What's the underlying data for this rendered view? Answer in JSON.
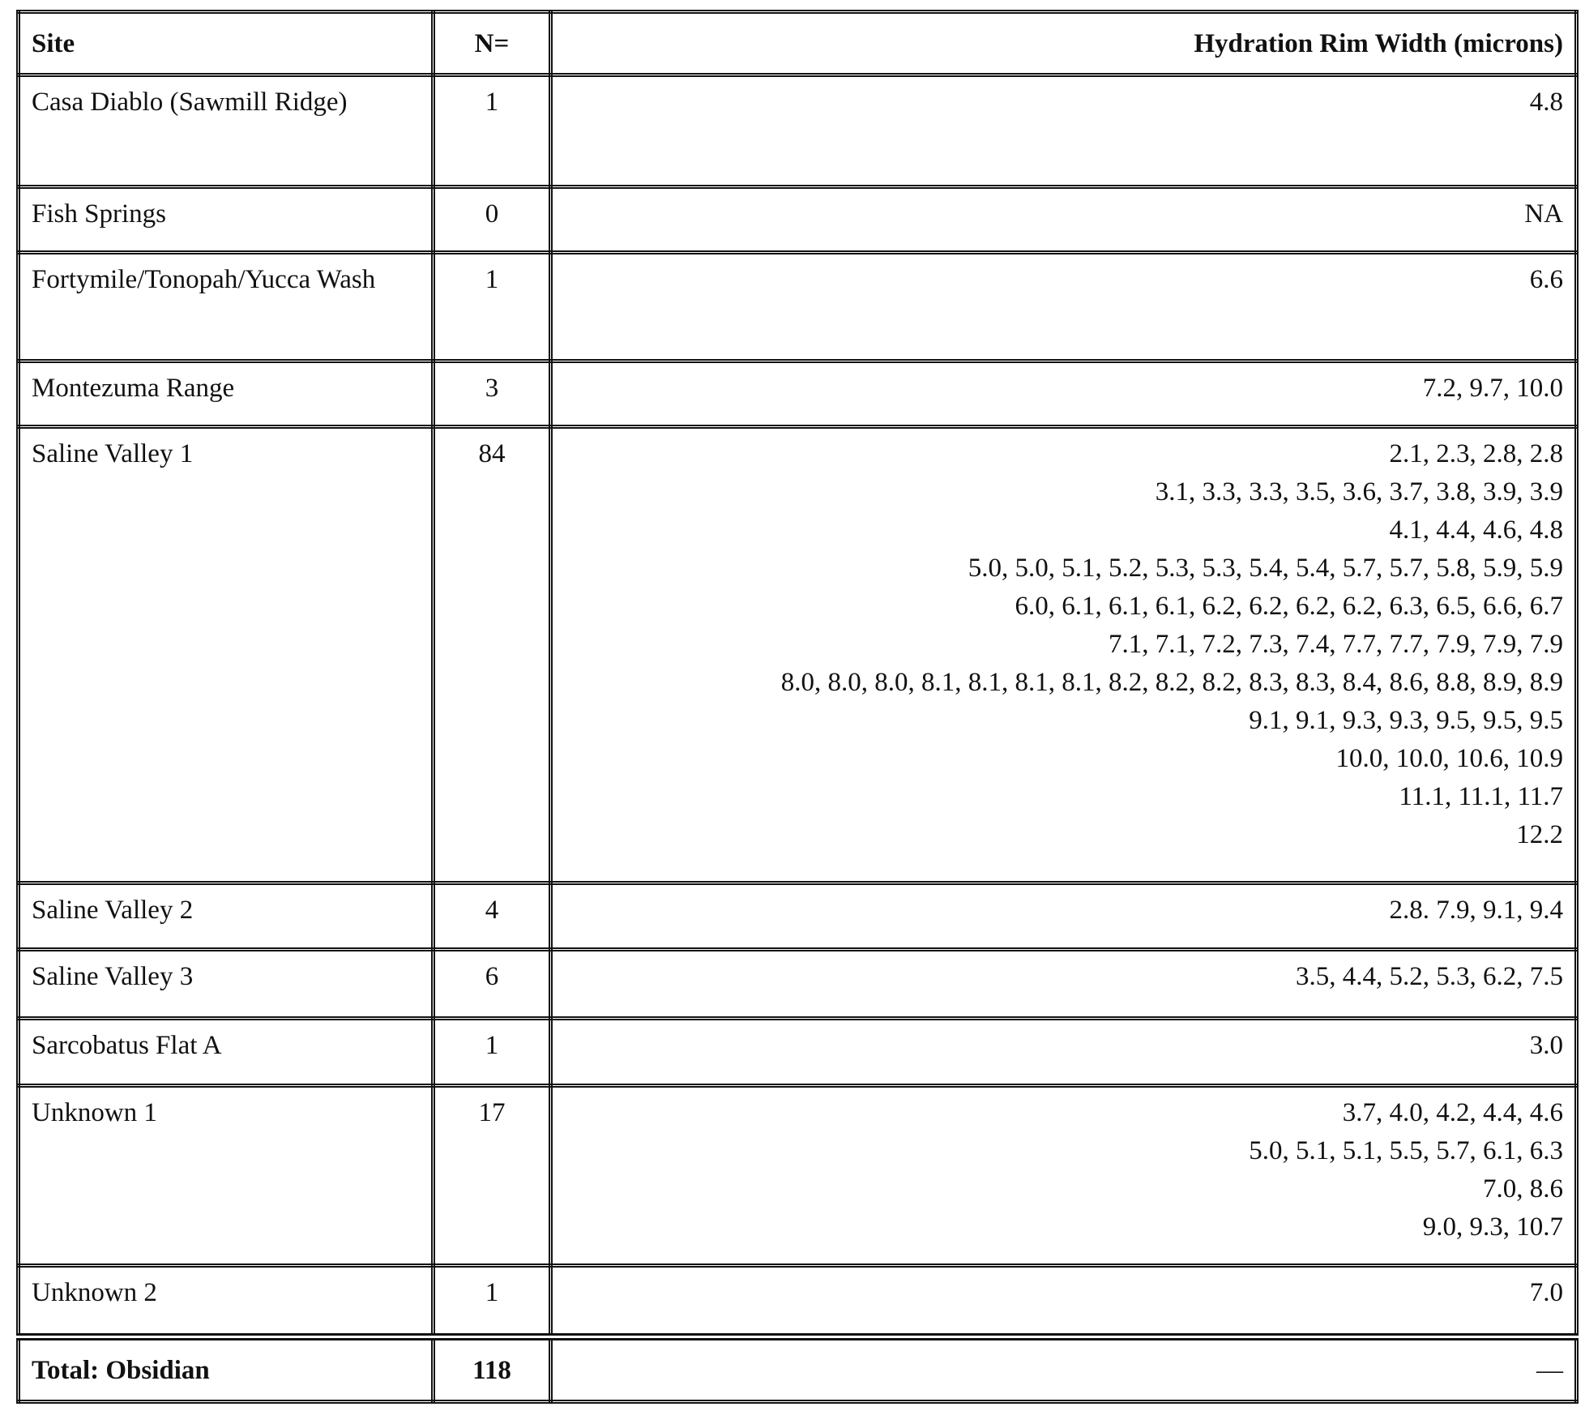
{
  "headers": {
    "site": "Site",
    "n": "N=",
    "rim": "Hydration Rim Width (microns)"
  },
  "rows": [
    {
      "site": "Casa Diablo (Sawmill Ridge)",
      "n": "1",
      "rim": [
        "4.8"
      ]
    },
    {
      "site": "Fish Springs",
      "n": "0",
      "rim": [
        "NA"
      ]
    },
    {
      "site": "Fortymile/Tonopah/Yucca Wash",
      "n": "1",
      "rim": [
        "6.6"
      ]
    },
    {
      "site": "Montezuma Range",
      "n": "3",
      "rim": [
        "7.2, 9.7, 10.0"
      ]
    },
    {
      "site": "Saline Valley 1",
      "n": "84",
      "rim": [
        "2.1, 2.3, 2.8, 2.8",
        "3.1, 3.3, 3.3, 3.5, 3.6, 3.7, 3.8, 3.9, 3.9",
        "4.1, 4.4, 4.6, 4.8",
        "5.0, 5.0, 5.1, 5.2, 5.3, 5.3, 5.4, 5.4, 5.7, 5.7, 5.8, 5.9, 5.9",
        "6.0, 6.1, 6.1, 6.1, 6.2, 6.2, 6.2, 6.2, 6.3, 6.5, 6.6, 6.7",
        "7.1, 7.1, 7.2, 7.3, 7.4, 7.7, 7.7, 7.9, 7.9, 7.9",
        "8.0, 8.0, 8.0, 8.1, 8.1, 8.1, 8.1, 8.2, 8.2, 8.2, 8.3, 8.3, 8.4, 8.6, 8.8, 8.9, 8.9",
        "9.1, 9.1, 9.3, 9.3, 9.5, 9.5, 9.5",
        "10.0, 10.0, 10.6, 10.9",
        "11.1, 11.1, 11.7",
        "12.2"
      ]
    },
    {
      "site": "Saline Valley 2",
      "n": "4",
      "rim": [
        "2.8. 7.9, 9.1, 9.4"
      ]
    },
    {
      "site": "Saline Valley 3",
      "n": "6",
      "rim": [
        "3.5, 4.4, 5.2, 5.3, 6.2, 7.5"
      ]
    },
    {
      "site": "Sarcobatus Flat A",
      "n": "1",
      "rim": [
        "3.0"
      ]
    },
    {
      "site": "Unknown 1",
      "n": "17",
      "rim": [
        "3.7, 4.0, 4.2, 4.4, 4.6",
        "5.0, 5.1, 5.1, 5.5, 5.7, 6.1, 6.3",
        "7.0, 8.6",
        "9.0, 9.3, 10.7"
      ]
    },
    {
      "site": "Unknown 2",
      "n": "1",
      "rim": [
        "7.0"
      ]
    }
  ],
  "total": {
    "site": "Total: Obsidian",
    "n": "118",
    "rim": "—"
  }
}
